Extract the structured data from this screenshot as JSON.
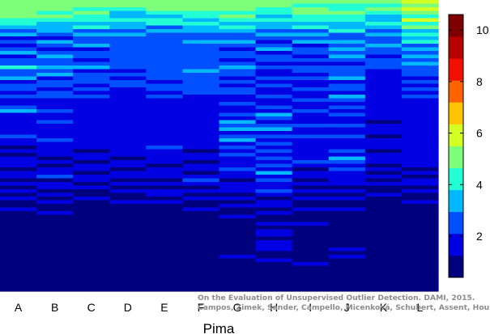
{
  "chart_data": {
    "type": "heatmap",
    "title": "",
    "xlabel": "Pima",
    "ylabel": "",
    "categories": [
      "A",
      "B",
      "C",
      "D",
      "E",
      "F",
      "G",
      "H",
      "I",
      "J",
      "K",
      "L"
    ],
    "row_count": 80,
    "colorbar": {
      "min": 0.4,
      "max": 10.6,
      "ticks": [
        2,
        4,
        6,
        8,
        10
      ],
      "bins": 12,
      "colormap": [
        "#00007f",
        "#0000e3",
        "#0050ff",
        "#00b8ff",
        "#22ffd5",
        "#7dff7a",
        "#d4ff23",
        "#ffc400",
        "#ff6400",
        "#f00f00",
        "#b80000",
        "#7f0000"
      ]
    },
    "column_profiles": [
      {
        "category": "A",
        "levels": [
          5,
          5,
          5,
          5,
          5,
          4,
          4,
          3,
          2,
          3,
          1,
          2,
          1,
          2,
          3,
          1,
          2,
          2,
          4,
          2,
          2,
          3,
          1,
          2,
          2,
          1,
          2,
          1,
          1,
          2,
          3,
          1,
          1,
          1,
          1,
          1,
          1,
          2,
          1,
          1,
          0,
          1,
          0,
          1,
          1,
          1,
          0,
          1,
          1,
          0,
          1,
          0,
          1,
          0,
          1,
          0,
          0,
          1,
          0,
          0,
          0,
          0,
          0,
          0,
          0,
          0,
          0,
          0,
          0,
          0,
          0,
          0,
          0,
          0,
          0,
          0,
          0,
          0,
          0,
          0
        ]
      },
      {
        "category": "B",
        "levels": [
          5,
          5,
          5,
          4,
          5,
          4,
          3,
          3,
          3,
          2,
          1,
          3,
          2,
          1,
          2,
          3,
          2,
          2,
          3,
          2,
          3,
          1,
          2,
          2,
          1,
          2,
          2,
          1,
          1,
          1,
          2,
          1,
          1,
          2,
          1,
          1,
          1,
          1,
          2,
          1,
          1,
          1,
          1,
          0,
          1,
          0,
          1,
          1,
          2,
          0,
          1,
          1,
          0,
          1,
          0,
          1,
          0,
          0,
          1,
          0,
          0,
          0,
          0,
          0,
          0,
          0,
          0,
          0,
          0,
          0,
          0,
          0,
          0,
          0,
          0,
          0,
          0,
          0,
          0,
          0
        ]
      },
      {
        "category": "C",
        "levels": [
          5,
          5,
          4,
          5,
          4,
          4,
          3,
          4,
          2,
          3,
          2,
          2,
          3,
          1,
          2,
          2,
          1,
          2,
          3,
          1,
          2,
          2,
          2,
          1,
          2,
          1,
          2,
          1,
          1,
          1,
          1,
          1,
          1,
          1,
          1,
          1,
          1,
          1,
          1,
          1,
          1,
          0,
          1,
          1,
          0,
          1,
          1,
          0,
          1,
          1,
          0,
          1,
          0,
          0,
          1,
          0,
          0,
          0,
          0,
          0,
          0,
          0,
          0,
          0,
          0,
          0,
          0,
          0,
          0,
          0,
          0,
          0,
          0,
          0,
          0,
          0,
          0,
          0,
          0,
          0
        ]
      },
      {
        "category": "D",
        "levels": [
          5,
          5,
          4,
          3,
          3,
          4,
          3,
          3,
          2,
          3,
          2,
          2,
          2,
          2,
          2,
          2,
          2,
          2,
          2,
          1,
          2,
          1,
          2,
          2,
          1,
          1,
          1,
          1,
          1,
          1,
          1,
          1,
          1,
          1,
          1,
          1,
          1,
          1,
          1,
          1,
          1,
          1,
          1,
          0,
          1,
          1,
          0,
          1,
          1,
          0,
          1,
          0,
          1,
          0,
          0,
          1,
          0,
          0,
          0,
          0,
          0,
          0,
          0,
          0,
          0,
          0,
          0,
          0,
          0,
          0,
          0,
          0,
          0,
          0,
          0,
          0,
          0,
          0,
          0,
          0
        ]
      },
      {
        "category": "E",
        "levels": [
          5,
          5,
          5,
          4,
          3,
          4,
          4,
          2,
          3,
          2,
          2,
          2,
          2,
          2,
          2,
          2,
          2,
          2,
          2,
          2,
          2,
          2,
          1,
          2,
          2,
          1,
          2,
          1,
          1,
          1,
          1,
          1,
          1,
          1,
          1,
          1,
          1,
          1,
          1,
          1,
          2,
          1,
          1,
          1,
          1,
          0,
          1,
          1,
          1,
          0,
          1,
          0,
          1,
          1,
          0,
          1,
          0,
          0,
          0,
          0,
          0,
          0,
          0,
          0,
          0,
          0,
          0,
          0,
          0,
          0,
          0,
          0,
          0,
          0,
          0,
          0,
          0,
          0,
          0,
          0
        ]
      },
      {
        "category": "F",
        "levels": [
          5,
          5,
          5,
          4,
          4,
          3,
          4,
          3,
          3,
          2,
          2,
          3,
          2,
          2,
          2,
          2,
          2,
          2,
          2,
          3,
          2,
          2,
          2,
          2,
          2,
          2,
          1,
          1,
          1,
          1,
          1,
          1,
          1,
          1,
          1,
          1,
          1,
          1,
          1,
          1,
          1,
          0,
          1,
          1,
          0,
          1,
          1,
          0,
          1,
          2,
          1,
          0,
          1,
          0,
          1,
          0,
          0,
          1,
          0,
          0,
          0,
          0,
          0,
          0,
          0,
          0,
          0,
          0,
          0,
          0,
          0,
          0,
          0,
          0,
          0,
          0,
          0,
          0,
          0,
          0
        ]
      },
      {
        "category": "G",
        "levels": [
          5,
          5,
          5,
          4,
          5,
          4,
          3,
          4,
          3,
          2,
          2,
          3,
          2,
          1,
          2,
          2,
          1,
          2,
          3,
          2,
          2,
          1,
          2,
          1,
          2,
          2,
          1,
          1,
          2,
          1,
          1,
          2,
          1,
          3,
          2,
          3,
          1,
          2,
          3,
          1,
          2,
          1,
          2,
          1,
          1,
          1,
          2,
          1,
          1,
          0,
          1,
          1,
          1,
          0,
          1,
          0,
          1,
          0,
          0,
          1,
          0,
          0,
          0,
          0,
          0,
          0,
          0,
          0,
          0,
          0,
          1,
          0,
          0,
          0,
          0,
          0,
          0,
          0,
          0,
          0
        ]
      },
      {
        "category": "H",
        "levels": [
          5,
          5,
          4,
          4,
          3,
          4,
          3,
          3,
          2,
          3,
          2,
          1,
          2,
          3,
          1,
          2,
          2,
          1,
          2,
          1,
          1,
          2,
          1,
          2,
          1,
          1,
          2,
          1,
          1,
          2,
          1,
          3,
          2,
          1,
          2,
          3,
          1,
          2,
          1,
          2,
          1,
          2,
          1,
          2,
          1,
          2,
          1,
          3,
          1,
          2,
          1,
          1,
          2,
          1,
          0,
          1,
          1,
          0,
          1,
          0,
          0,
          1,
          0,
          1,
          1,
          0,
          1,
          1,
          1,
          0,
          0,
          1,
          0,
          0,
          0,
          0,
          0,
          0,
          0,
          0
        ]
      },
      {
        "category": "I",
        "levels": [
          5,
          4,
          5,
          5,
          4,
          4,
          3,
          4,
          2,
          3,
          2,
          3,
          1,
          2,
          2,
          1,
          2,
          1,
          2,
          2,
          1,
          2,
          1,
          1,
          2,
          1,
          1,
          2,
          1,
          1,
          2,
          1,
          1,
          1,
          2,
          1,
          1,
          2,
          1,
          1,
          1,
          1,
          1,
          1,
          2,
          1,
          0,
          1,
          1,
          0,
          1,
          0,
          1,
          0,
          1,
          0,
          0,
          1,
          0,
          0,
          0,
          1,
          0,
          0,
          0,
          0,
          0,
          0,
          0,
          0,
          0,
          0,
          1,
          0,
          0,
          0,
          0,
          0,
          0,
          0
        ]
      },
      {
        "category": "J",
        "levels": [
          5,
          4,
          4,
          5,
          4,
          4,
          3,
          3,
          4,
          2,
          2,
          3,
          2,
          3,
          2,
          3,
          2,
          1,
          2,
          2,
          2,
          3,
          1,
          2,
          2,
          1,
          3,
          2,
          1,
          2,
          1,
          2,
          1,
          1,
          2,
          1,
          1,
          2,
          1,
          1,
          1,
          2,
          1,
          3,
          2,
          1,
          2,
          1,
          1,
          1,
          1,
          0,
          1,
          0,
          1,
          0,
          0,
          1,
          0,
          0,
          0,
          0,
          0,
          0,
          0,
          0,
          0,
          0,
          1,
          0,
          1,
          0,
          0,
          0,
          0,
          0,
          0,
          0,
          0,
          0
        ]
      },
      {
        "category": "K",
        "levels": [
          5,
          4,
          5,
          4,
          3,
          3,
          4,
          3,
          2,
          3,
          2,
          2,
          3,
          2,
          2,
          1,
          2,
          2,
          2,
          1,
          1,
          1,
          1,
          1,
          1,
          1,
          1,
          1,
          1,
          1,
          1,
          1,
          1,
          0,
          1,
          1,
          1,
          0,
          1,
          1,
          1,
          0,
          1,
          1,
          1,
          0,
          1,
          0,
          1,
          0,
          1,
          0,
          0,
          1,
          0,
          0,
          0,
          0,
          0,
          0,
          0,
          0,
          0,
          0,
          0,
          0,
          0,
          0,
          0,
          0,
          0,
          0,
          0,
          0,
          0,
          0,
          0,
          0,
          0,
          0
        ]
      },
      {
        "category": "L",
        "levels": [
          6,
          5,
          6,
          5,
          4,
          6,
          4,
          5,
          3,
          4,
          3,
          4,
          2,
          3,
          2,
          3,
          2,
          3,
          2,
          2,
          2,
          1,
          2,
          1,
          2,
          1,
          2,
          1,
          1,
          1,
          1,
          1,
          1,
          1,
          1,
          1,
          1,
          1,
          1,
          1,
          1,
          1,
          1,
          1,
          1,
          1,
          0,
          1,
          0,
          1,
          1,
          0,
          1,
          0,
          0,
          1,
          0,
          0,
          0,
          0,
          0,
          0,
          0,
          0,
          0,
          0,
          0,
          0,
          0,
          0,
          0,
          0,
          0,
          0,
          0,
          0,
          0,
          0,
          0,
          0
        ]
      }
    ]
  },
  "credit": {
    "line1": "On the Evaluation of Unsupervised Outlier Detection. DAMI, 2015.",
    "line2": "Campos, Zimek, Sander, Campello, Micenková, Schubert, Assent, Houle"
  }
}
